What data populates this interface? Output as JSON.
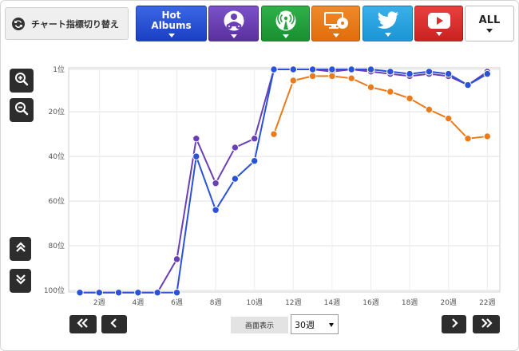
{
  "toolbar": {
    "switch_label": "チャート指標切り替え",
    "hot_label_1": "Hot",
    "hot_label_2": "Albums",
    "all_label": "ALL",
    "tabs": [
      {
        "name": "hot-albums",
        "icon": "hot-albums",
        "color": "#2a52d6"
      },
      {
        "name": "sales",
        "icon": "cd-sales-icon",
        "color": "#6a3fb5"
      },
      {
        "name": "radio",
        "icon": "radio-antenna-icon",
        "color": "#24a33c"
      },
      {
        "name": "pc",
        "icon": "pc-cd-icon",
        "color": "#ea7a1a"
      },
      {
        "name": "twitter",
        "icon": "twitter-bird-icon",
        "color": "#29a3e0"
      },
      {
        "name": "youtube",
        "icon": "youtube-play-icon",
        "color": "#d9302f"
      },
      {
        "name": "all",
        "icon": "",
        "color": "#ffffff"
      }
    ]
  },
  "controls": {
    "display_label": "画面表示",
    "display_value": "30週"
  },
  "chart_data": {
    "type": "line",
    "x_ticks": [
      "2週",
      "4週",
      "6週",
      "8週",
      "10週",
      "12週",
      "14週",
      "16週",
      "18週",
      "20週",
      "22週"
    ],
    "y_ticks": [
      "1位",
      "20位",
      "40位",
      "60位",
      "80位",
      "100位"
    ],
    "y_tick_values": [
      1,
      20,
      40,
      60,
      80,
      100
    ],
    "ylim": [
      100,
      1
    ],
    "xlim": [
      1,
      22
    ],
    "y_inverted": true,
    "grid": true,
    "series": [
      {
        "key": "purple",
        "color": "#6a3fb5",
        "x": [
          1,
          2,
          3,
          4,
          5,
          6,
          7,
          8,
          9,
          10,
          11,
          12,
          13,
          14,
          15,
          16,
          17,
          18,
          19,
          20,
          21,
          22
        ],
        "values": [
          101,
          101,
          101,
          101,
          101,
          86,
          32,
          52,
          36,
          32,
          1,
          1,
          1,
          2,
          1,
          2,
          3,
          4,
          3,
          4,
          8,
          2
        ]
      },
      {
        "key": "orange",
        "color": "#ea7a1a",
        "x": [
          11,
          12,
          13,
          14,
          15,
          16,
          17,
          18,
          19,
          20,
          21,
          22
        ],
        "values": [
          30,
          6,
          4,
          4,
          5,
          9,
          11,
          14,
          19,
          23,
          32,
          31
        ]
      },
      {
        "key": "blue",
        "color": "#2a52d6",
        "x": [
          1,
          2,
          3,
          4,
          5,
          6,
          7,
          8,
          9,
          10,
          11,
          12,
          13,
          14,
          15,
          16,
          17,
          18,
          19,
          20,
          21,
          22
        ],
        "values": [
          101,
          101,
          101,
          101,
          101,
          101,
          40,
          64,
          50,
          42,
          1,
          0,
          0,
          1,
          0,
          1,
          2,
          3,
          2,
          3,
          8,
          3
        ]
      }
    ]
  }
}
